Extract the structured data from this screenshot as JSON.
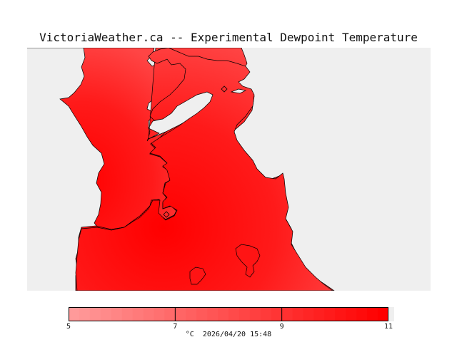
{
  "title": "VictoriaWeather.ca -- Experimental Dewpoint Temperature",
  "map": {
    "water_color": "#efefef",
    "land_color_low": "#ff4d4d",
    "land_color_high": "#ff0000"
  },
  "colorbar": {
    "min": 5,
    "max": 11,
    "ticks": [
      "5",
      "7",
      "9",
      "11"
    ],
    "tick_values": [
      5,
      7,
      9,
      11
    ],
    "color_min": "#ff9a9a",
    "color_max": "#ff0000"
  },
  "footer": {
    "unit": "°C",
    "timestamp": "2026/04/20 15:48"
  }
}
